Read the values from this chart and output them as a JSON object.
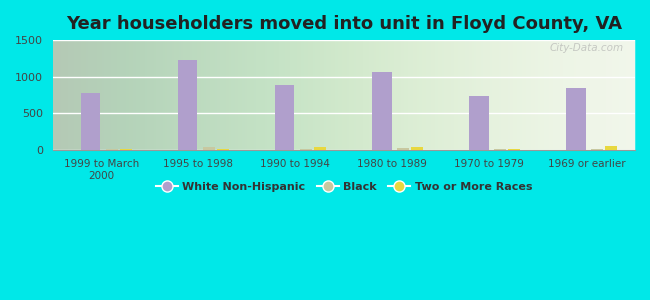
{
  "title": "Year householders moved into unit in Floyd County, VA",
  "categories": [
    "1999 to March\n2000",
    "1995 to 1998",
    "1990 to 1994",
    "1980 to 1989",
    "1970 to 1979",
    "1969 or earlier"
  ],
  "white_non_hispanic": [
    775,
    1225,
    885,
    1060,
    730,
    840
  ],
  "black": [
    10,
    35,
    10,
    20,
    10,
    10
  ],
  "two_or_more": [
    5,
    15,
    35,
    30,
    5,
    50
  ],
  "bar_width": 0.18,
  "white_color": "#b09fcc",
  "black_color": "#c8c8a0",
  "two_more_color": "#e8d840",
  "bg_outer": "#00e8e8",
  "bg_plot_top": "#f5f8f0",
  "bg_plot_bottom": "#d8e8c8",
  "ylim": [
    0,
    1500
  ],
  "yticks": [
    0,
    500,
    1000,
    1500
  ],
  "title_fontsize": 13,
  "title_color": "#222222",
  "watermark": "City-Data.com",
  "legend_labels": [
    "White Non-Hispanic",
    "Black",
    "Two or More Races"
  ]
}
